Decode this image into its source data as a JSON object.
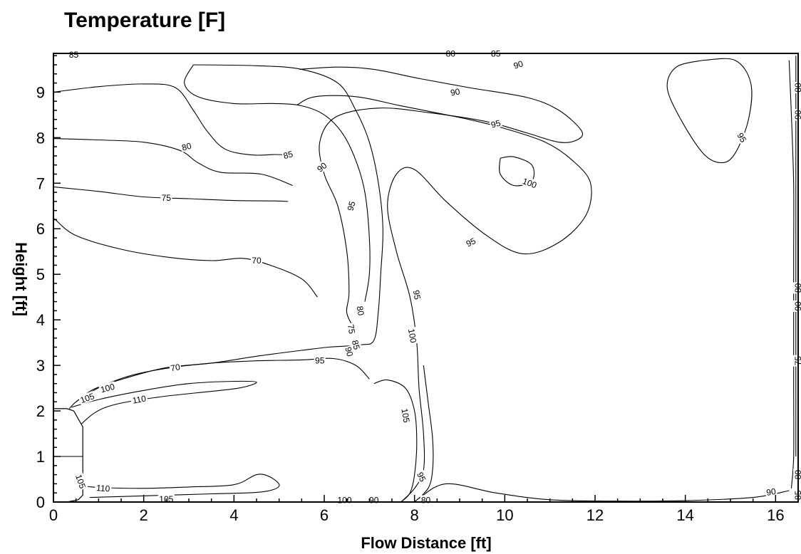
{
  "chart_data": {
    "type": "contour",
    "title": "Temperature [F]",
    "xlabel": "Flow Distance [ft]",
    "ylabel": "Height [ft]",
    "xlim": [
      0,
      16.5
    ],
    "ylim": [
      0,
      9.85
    ],
    "xticks": [
      0,
      2,
      4,
      6,
      8,
      10,
      12,
      14,
      16
    ],
    "yticks": [
      0,
      1,
      2,
      3,
      4,
      5,
      6,
      7,
      8,
      9
    ],
    "xtick_labels": [
      "0",
      "2",
      "4",
      "6",
      "8",
      "10",
      "12",
      "14",
      "16"
    ],
    "ytick_labels": [
      "0",
      "1",
      "2",
      "3",
      "4",
      "5",
      "6",
      "7",
      "8",
      "9"
    ],
    "grid": false,
    "contours": [
      {
        "level": "90",
        "points": [
          [
            0,
            9.0
          ],
          [
            1.0,
            9.12
          ],
          [
            2.0,
            9.18
          ],
          [
            2.7,
            9.1
          ],
          [
            3.1,
            8.6
          ],
          [
            3.4,
            8.15
          ],
          [
            3.8,
            7.75
          ],
          [
            4.4,
            7.62
          ],
          [
            4.9,
            7.63
          ],
          [
            5.2,
            7.62
          ]
        ]
      },
      {
        "level": "80",
        "points": [
          [
            0,
            7.98
          ],
          [
            1.0,
            7.95
          ],
          [
            2.0,
            7.9
          ],
          [
            2.8,
            7.72
          ],
          [
            3.2,
            7.45
          ],
          [
            3.7,
            7.24
          ],
          [
            4.6,
            7.2
          ],
          [
            5.3,
            6.95
          ]
        ]
      },
      {
        "level": "75",
        "points": [
          [
            0,
            6.92
          ],
          [
            1.0,
            6.82
          ],
          [
            2.0,
            6.7
          ],
          [
            3.0,
            6.66
          ],
          [
            4.0,
            6.62
          ],
          [
            4.9,
            6.61
          ],
          [
            5.2,
            6.6
          ]
        ]
      },
      {
        "level": "70",
        "points": [
          [
            0.02,
            6.22
          ],
          [
            0.5,
            5.85
          ],
          [
            1.5,
            5.55
          ],
          [
            2.5,
            5.38
          ],
          [
            3.5,
            5.3
          ],
          [
            4.2,
            5.35
          ],
          [
            4.8,
            5.2
          ],
          [
            5.5,
            4.9
          ],
          [
            5.85,
            4.5
          ]
        ]
      },
      {
        "level": "85",
        "points": [
          [
            3.1,
            9.6
          ],
          [
            4.5,
            9.58
          ],
          [
            5.5,
            9.5
          ],
          [
            6.3,
            9.2
          ],
          [
            6.7,
            8.6
          ],
          [
            7.0,
            7.9
          ],
          [
            7.2,
            7.0
          ],
          [
            7.3,
            6.0
          ],
          [
            7.25,
            5.0
          ],
          [
            7.2,
            4.2
          ],
          [
            7.1,
            3.55
          ],
          [
            6.8,
            3.45
          ],
          [
            6.1,
            3.4
          ],
          [
            5.5,
            3.33
          ],
          [
            4.5,
            3.2
          ],
          [
            3.5,
            3.05
          ],
          [
            2.5,
            2.95
          ],
          [
            1.6,
            2.72
          ],
          [
            0.9,
            2.48
          ],
          [
            0.5,
            2.2
          ]
        ]
      },
      {
        "level": "85",
        "points": [
          [
            3.1,
            9.6
          ],
          [
            2.9,
            9.2
          ],
          [
            3.2,
            8.9
          ],
          [
            4.0,
            8.75
          ],
          [
            4.9,
            8.75
          ],
          [
            5.5,
            8.7
          ],
          [
            6.0,
            8.5
          ],
          [
            6.4,
            8.1
          ],
          [
            6.7,
            7.5
          ],
          [
            6.9,
            6.8
          ],
          [
            7.0,
            5.8
          ],
          [
            7.0,
            5.0
          ],
          [
            6.9,
            4.4
          ]
        ]
      },
      {
        "level": "95",
        "points": [
          [
            5.4,
            8.72
          ],
          [
            5.8,
            8.9
          ],
          [
            6.7,
            8.9
          ],
          [
            7.7,
            8.7
          ],
          [
            9.2,
            8.4
          ],
          [
            10.0,
            8.2
          ],
          [
            10.9,
            7.9
          ],
          [
            11.5,
            7.5
          ],
          [
            11.9,
            7.0
          ],
          [
            11.8,
            6.3
          ],
          [
            11.2,
            5.7
          ],
          [
            10.4,
            5.45
          ],
          [
            9.6,
            5.85
          ],
          [
            8.7,
            6.6
          ],
          [
            8.0,
            7.3
          ],
          [
            7.6,
            7.2
          ],
          [
            7.4,
            6.5
          ],
          [
            7.6,
            5.5
          ],
          [
            7.9,
            4.5
          ],
          [
            8.05,
            3.5
          ],
          [
            8.1,
            2.5
          ],
          [
            8.2,
            1.5
          ],
          [
            8.2,
            0.7
          ],
          [
            8.0,
            0.3
          ],
          [
            7.7,
            0.0
          ]
        ]
      },
      {
        "level": "90",
        "points": [
          [
            5.45,
            9.5
          ],
          [
            6.3,
            9.55
          ],
          [
            7.1,
            9.5
          ],
          [
            8.1,
            9.3
          ],
          [
            9.2,
            9.1
          ],
          [
            10.5,
            8.88
          ],
          [
            11.2,
            8.6
          ],
          [
            11.7,
            8.15
          ],
          [
            11.6,
            7.95
          ],
          [
            11.2,
            7.9
          ],
          [
            10.5,
            8.1
          ],
          [
            9.6,
            8.35
          ],
          [
            8.3,
            8.55
          ],
          [
            7.2,
            8.65
          ],
          [
            6.25,
            8.45
          ],
          [
            5.9,
            7.9
          ],
          [
            6.0,
            7.2
          ],
          [
            6.3,
            6.5
          ],
          [
            6.5,
            5.5
          ],
          [
            6.55,
            4.6
          ],
          [
            6.5,
            4.15
          ],
          [
            6.7,
            3.75
          ]
        ]
      },
      {
        "level": "100",
        "points": [
          [
            9.9,
            7.55
          ],
          [
            10.2,
            7.58
          ],
          [
            10.6,
            7.4
          ],
          [
            10.6,
            7.05
          ],
          [
            10.2,
            6.95
          ],
          [
            9.9,
            7.2
          ],
          [
            9.9,
            7.55
          ]
        ]
      },
      {
        "level": "95",
        "points": [
          [
            14.4,
            9.7
          ],
          [
            15.1,
            9.7
          ],
          [
            15.45,
            9.2
          ],
          [
            15.4,
            8.4
          ],
          [
            15.1,
            7.65
          ],
          [
            14.8,
            7.45
          ],
          [
            14.4,
            7.65
          ],
          [
            13.9,
            8.4
          ],
          [
            13.6,
            9.1
          ],
          [
            13.8,
            9.55
          ],
          [
            14.4,
            9.7
          ]
        ]
      },
      {
        "level": "100",
        "points": [
          [
            8.2,
            3.0
          ],
          [
            8.3,
            2.2
          ],
          [
            8.4,
            1.4
          ],
          [
            8.4,
            0.7
          ],
          [
            8.3,
            0.3
          ],
          [
            8.0,
            0.0
          ]
        ]
      },
      {
        "level": "105",
        "points": [
          [
            7.1,
            2.6
          ],
          [
            7.4,
            2.68
          ],
          [
            7.8,
            2.5
          ],
          [
            8.0,
            2.0
          ],
          [
            8.05,
            1.3
          ],
          [
            8.0,
            0.6
          ],
          [
            7.9,
            0.2
          ],
          [
            7.7,
            0.0
          ]
        ]
      },
      {
        "level": "110",
        "points": [
          [
            0.4,
            2.08
          ],
          [
            1.0,
            2.25
          ],
          [
            2.0,
            2.45
          ],
          [
            3.0,
            2.6
          ],
          [
            4.0,
            2.65
          ],
          [
            4.5,
            2.63
          ],
          [
            4.1,
            2.5
          ],
          [
            3.2,
            2.4
          ],
          [
            2.3,
            2.3
          ],
          [
            1.4,
            2.15
          ],
          [
            0.9,
            1.95
          ],
          [
            0.45,
            1.55
          ]
        ]
      },
      {
        "level": "105",
        "points": [
          [
            0.35,
            2.05
          ],
          [
            0.5,
            2.2
          ],
          [
            0.8,
            2.4
          ],
          [
            1.2,
            2.6
          ],
          [
            1.8,
            2.8
          ],
          [
            2.6,
            2.95
          ],
          [
            3.5,
            3.05
          ],
          [
            4.5,
            3.1
          ],
          [
            5.5,
            3.12
          ],
          [
            6.2,
            3.15
          ],
          [
            6.7,
            3.0
          ],
          [
            7.0,
            2.7
          ]
        ]
      },
      {
        "level": "110",
        "points": [
          [
            0.7,
            0.35
          ],
          [
            1.0,
            0.32
          ],
          [
            2.0,
            0.3
          ],
          [
            3.0,
            0.33
          ],
          [
            4.0,
            0.38
          ],
          [
            4.5,
            0.6
          ],
          [
            4.8,
            0.55
          ],
          [
            5.0,
            0.35
          ],
          [
            4.6,
            0.22
          ],
          [
            3.5,
            0.18
          ],
          [
            2.5,
            0.15
          ],
          [
            1.5,
            0.12
          ],
          [
            0.8,
            0.1
          ]
        ]
      },
      {
        "level": "95",
        "points": [
          [
            8.1,
            0.08
          ],
          [
            8.7,
            0.4
          ],
          [
            9.8,
            0.2
          ],
          [
            11.0,
            0.05
          ],
          [
            12.5,
            0.02
          ],
          [
            14.0,
            0.03
          ],
          [
            15.5,
            0.1
          ],
          [
            16.3,
            0.25
          ]
        ]
      },
      {
        "level": "90",
        "points": [
          [
            16.3,
            9.7
          ],
          [
            16.35,
            8.5
          ],
          [
            16.4,
            7.0
          ],
          [
            16.4,
            5.5
          ],
          [
            16.4,
            4.0
          ],
          [
            16.4,
            2.5
          ],
          [
            16.4,
            1.0
          ],
          [
            16.35,
            0.3
          ]
        ]
      },
      {
        "level": "80",
        "points": [
          [
            16.45,
            9.8
          ],
          [
            16.45,
            7.0
          ],
          [
            16.45,
            4.0
          ],
          [
            16.45,
            1.0
          ]
        ]
      }
    ],
    "contour_labels": [
      {
        "text": "85",
        "x": 0.45,
        "y": 9.82,
        "angle": 0
      },
      {
        "text": "80",
        "x": 8.8,
        "y": 9.84,
        "angle": 0
      },
      {
        "text": "85",
        "x": 9.8,
        "y": 9.84,
        "angle": 0
      },
      {
        "text": "90",
        "x": 10.3,
        "y": 9.6,
        "angle": 18
      },
      {
        "text": "80",
        "x": 16.5,
        "y": 9.1,
        "angle": 90
      },
      {
        "text": "90",
        "x": 16.5,
        "y": 8.5,
        "angle": 90
      },
      {
        "text": "90",
        "x": 8.9,
        "y": 9.0,
        "angle": 10
      },
      {
        "text": "95",
        "x": 9.8,
        "y": 8.3,
        "angle": 15
      },
      {
        "text": "95",
        "x": 15.25,
        "y": 8.0,
        "angle": -60
      },
      {
        "text": "80",
        "x": 2.95,
        "y": 7.8,
        "angle": 15
      },
      {
        "text": "85",
        "x": 5.2,
        "y": 7.62,
        "angle": 15
      },
      {
        "text": "90",
        "x": 5.95,
        "y": 7.35,
        "angle": 40
      },
      {
        "text": "95",
        "x": 6.6,
        "y": 6.5,
        "angle": 75
      },
      {
        "text": "100",
        "x": 10.55,
        "y": 7.0,
        "angle": -20
      },
      {
        "text": "75",
        "x": 2.5,
        "y": 6.68,
        "angle": 0
      },
      {
        "text": "95",
        "x": 9.25,
        "y": 5.7,
        "angle": 25
      },
      {
        "text": "70",
        "x": 4.5,
        "y": 5.3,
        "angle": 0
      },
      {
        "text": "95",
        "x": 8.05,
        "y": 4.55,
        "angle": -80
      },
      {
        "text": "80",
        "x": 6.8,
        "y": 4.2,
        "angle": -80
      },
      {
        "text": "75",
        "x": 6.6,
        "y": 3.8,
        "angle": -80
      },
      {
        "text": "85",
        "x": 6.7,
        "y": 3.45,
        "angle": -75
      },
      {
        "text": "90",
        "x": 6.55,
        "y": 3.3,
        "angle": -75
      },
      {
        "text": "100",
        "x": 7.95,
        "y": 3.65,
        "angle": -80
      },
      {
        "text": "70",
        "x": 2.7,
        "y": 2.95,
        "angle": 10
      },
      {
        "text": "95",
        "x": 5.9,
        "y": 3.1,
        "angle": 0
      },
      {
        "text": "105",
        "x": 0.75,
        "y": 2.28,
        "angle": 20
      },
      {
        "text": "100",
        "x": 1.2,
        "y": 2.5,
        "angle": 15
      },
      {
        "text": "110",
        "x": 1.9,
        "y": 2.25,
        "angle": 10
      },
      {
        "text": "105",
        "x": 7.8,
        "y": 1.9,
        "angle": -80
      },
      {
        "text": "105",
        "x": 0.6,
        "y": 0.45,
        "angle": -70
      },
      {
        "text": "110",
        "x": 1.1,
        "y": 0.3,
        "angle": -5
      },
      {
        "text": "105",
        "x": 2.5,
        "y": 0.06,
        "angle": 0
      },
      {
        "text": "100",
        "x": 6.45,
        "y": 0.04,
        "angle": 0
      },
      {
        "text": "90",
        "x": 7.1,
        "y": 0.04,
        "angle": 0
      },
      {
        "text": "80",
        "x": 8.25,
        "y": 0.04,
        "angle": 0
      },
      {
        "text": "95",
        "x": 8.15,
        "y": 0.55,
        "angle": -65
      },
      {
        "text": "90",
        "x": 15.9,
        "y": 0.22,
        "angle": 10
      },
      {
        "text": "80",
        "x": 16.5,
        "y": 4.7,
        "angle": 90
      },
      {
        "text": "90",
        "x": 16.5,
        "y": 4.3,
        "angle": 90
      },
      {
        "text": "75",
        "x": 16.5,
        "y": 3.1,
        "angle": 90
      },
      {
        "text": "80",
        "x": 16.5,
        "y": 0.6,
        "angle": 90
      },
      {
        "text": "85",
        "x": 16.5,
        "y": 0.15,
        "angle": 90
      }
    ],
    "obstacle": {
      "points": [
        [
          0,
          0
        ],
        [
          0,
          2.05
        ],
        [
          0.3,
          2.05
        ],
        [
          0.45,
          2.0
        ],
        [
          0.65,
          1.65
        ],
        [
          0.65,
          0.15
        ],
        [
          0.55,
          0.05
        ],
        [
          0.3,
          0
        ],
        [
          0,
          0
        ]
      ]
    }
  }
}
